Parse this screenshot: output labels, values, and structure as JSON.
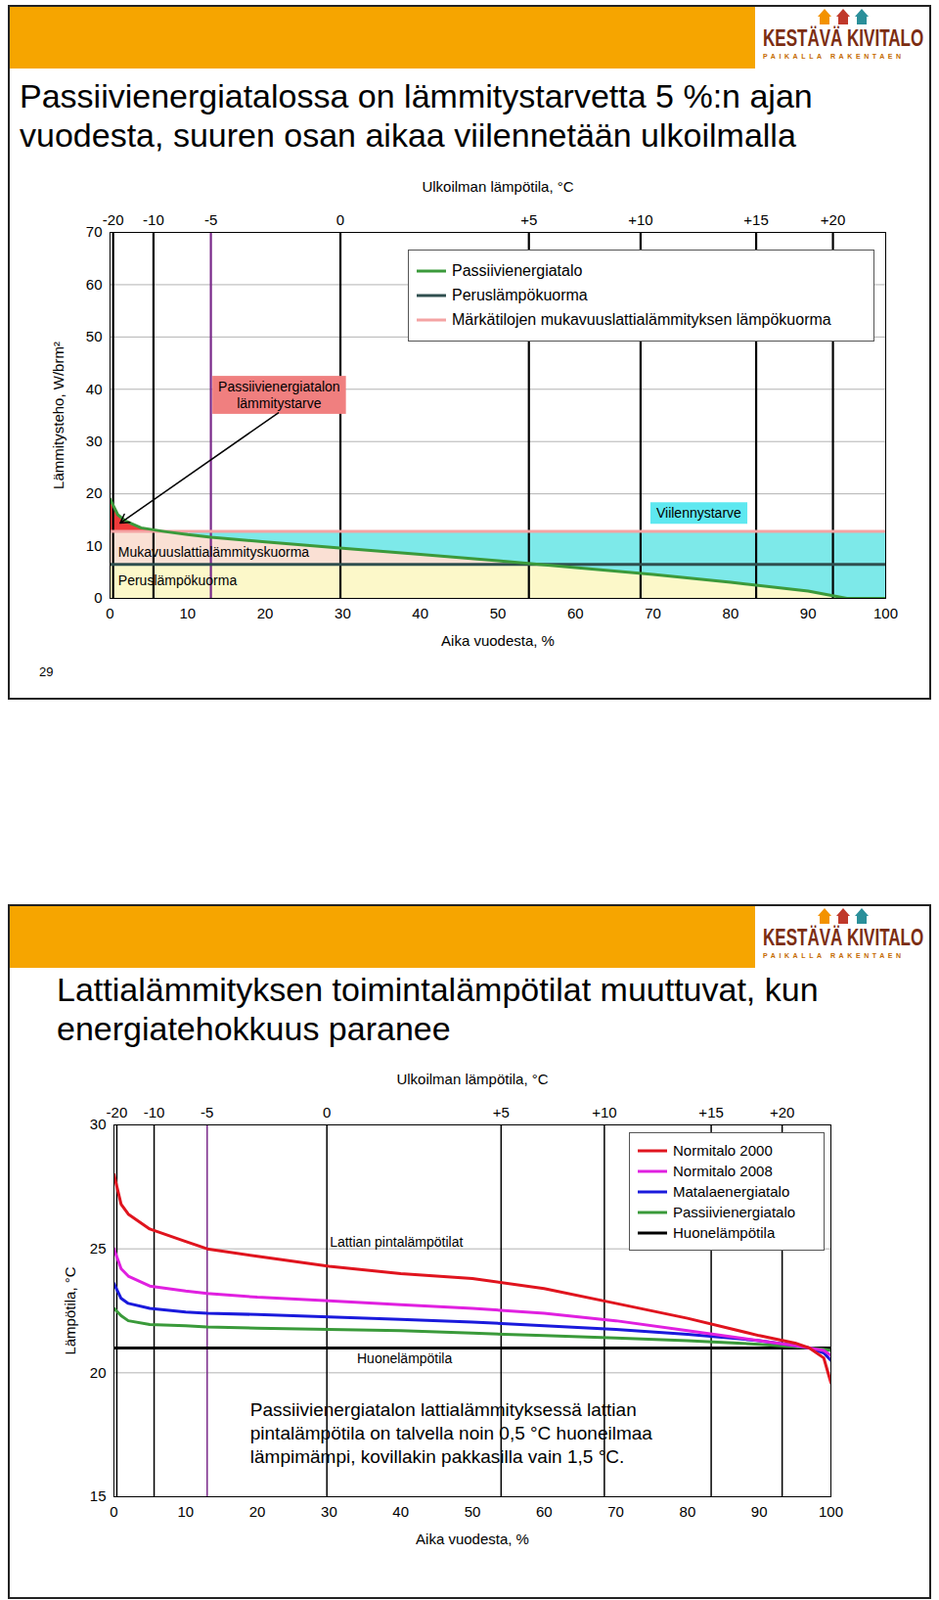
{
  "logo": {
    "name": "KESTÄVÄ KIVITALO",
    "tagline": "PAIKALLA RAKENTAEN"
  },
  "chart_data": [
    {
      "type": "area",
      "title": "Passiivienergiatalossa on lämmitystarvetta 5 %:n ajan vuodesta, suuren osan aikaa viilennetään ulkoilmalla",
      "page_number": "29",
      "xlabel": "Aika vuodesta, %",
      "ylabel": "Lämmitysteho, W/brm²",
      "x2label": "Ulkoilman lämpötila, °C",
      "xlim": [
        0,
        100
      ],
      "xticks": [
        0,
        10,
        20,
        30,
        40,
        50,
        60,
        70,
        80,
        90,
        100
      ],
      "ylim": [
        0,
        70
      ],
      "yticks": [
        0,
        10,
        20,
        30,
        40,
        50,
        60,
        70
      ],
      "x2ticks": [
        {
          "value": 0.4,
          "label": "-20"
        },
        {
          "value": 5.6,
          "label": "-10"
        },
        {
          "value": 13,
          "label": "-5"
        },
        {
          "value": 29.7,
          "label": "0"
        },
        {
          "value": 54,
          "label": "+5"
        },
        {
          "value": 68.4,
          "label": "+10"
        },
        {
          "value": 83.3,
          "label": "+15"
        },
        {
          "value": 93.2,
          "label": "+20"
        }
      ],
      "grid": true,
      "legend": "upper right",
      "x": [
        0,
        1,
        2,
        4,
        7,
        10,
        13,
        20,
        30,
        40,
        50,
        60,
        70,
        80,
        90,
        95,
        100
      ],
      "series": [
        {
          "name": "Passiivienergiatalo",
          "color": "#3b9a3b",
          "values": [
            19,
            16,
            14.8,
            13.5,
            12.8,
            12.2,
            11.7,
            10.8,
            9.6,
            8.4,
            7.2,
            5.9,
            4.6,
            3.1,
            1.4,
            0,
            0
          ]
        },
        {
          "name": "Peruslämpökuorma",
          "color": "#2f4f4f",
          "values": [
            6.5,
            6.5,
            6.5,
            6.5,
            6.5,
            6.5,
            6.5,
            6.5,
            6.5,
            6.5,
            6.5,
            6.5,
            6.5,
            6.5,
            6.5,
            6.5,
            6.5
          ]
        },
        {
          "name": "Märkätilojen mukavuuslattialämmityksen lämpökuorma",
          "color": "#f4a3a3",
          "values": [
            12.8,
            12.8,
            12.8,
            12.8,
            12.8,
            12.8,
            12.8,
            12.8,
            12.8,
            12.8,
            12.8,
            12.8,
            12.8,
            12.8,
            12.8,
            12.8,
            12.8
          ]
        }
      ],
      "annotations": [
        {
          "text": [
            "Passiivienergiatalon",
            "lämmitystarve"
          ],
          "x": 21.8,
          "y": 39,
          "color": "#f07f7f",
          "arrow": {
            "from": [
              21.7,
              35.5
            ],
            "to": [
              1.3,
              14.4
            ]
          }
        },
        {
          "text": "Viilennystarve",
          "x": 75.9,
          "y": 16.4,
          "color": "#5ee8f0"
        },
        {
          "text": "Mukavuuslattialämmityskuorma",
          "x": 1.05,
          "y": 9
        },
        {
          "text": "Peruslämpökuorma",
          "x": 1.05,
          "y": 3.5
        }
      ]
    },
    {
      "type": "line",
      "title": "Lattialämmityksen toimintalämpötilat muuttuvat, kun energiatehokkuus paranee",
      "xlabel": "Aika vuodesta, %",
      "ylabel": "Lämpötila, °C",
      "x2label": "Ulkoilman lämpötila, °C",
      "xlim": [
        0,
        100
      ],
      "xticks": [
        0,
        10,
        20,
        30,
        40,
        50,
        60,
        70,
        80,
        90,
        100
      ],
      "ylim": [
        15,
        30
      ],
      "yticks": [
        15,
        20,
        25,
        30
      ],
      "x2ticks": [
        {
          "value": 0.4,
          "label": "-20"
        },
        {
          "value": 5.6,
          "label": "-10"
        },
        {
          "value": 13,
          "label": "-5"
        },
        {
          "value": 29.7,
          "label": "0"
        },
        {
          "value": 54,
          "label": "+5"
        },
        {
          "value": 68.4,
          "label": "+10"
        },
        {
          "value": 83.3,
          "label": "+15"
        },
        {
          "value": 93.2,
          "label": "+20"
        }
      ],
      "grid": true,
      "legend": "upper right",
      "x": [
        0,
        1,
        2,
        5,
        10,
        13,
        20,
        30,
        40,
        50,
        60,
        70,
        80,
        90,
        95,
        97,
        99,
        100
      ],
      "series": [
        {
          "name": "Normitalo 2000",
          "color": "#e0141e",
          "values": [
            28,
            26.8,
            26.4,
            25.8,
            25.3,
            25.0,
            24.7,
            24.3,
            24.0,
            23.8,
            23.4,
            22.8,
            22.2,
            21.5,
            21.2,
            21.0,
            20.6,
            19.6
          ]
        },
        {
          "name": "Normitalo 2008",
          "color": "#e020e0",
          "values": [
            25,
            24.2,
            23.9,
            23.5,
            23.3,
            23.2,
            23.05,
            22.9,
            22.75,
            22.6,
            22.4,
            22.1,
            21.7,
            21.3,
            21.1,
            21.0,
            20.9,
            20.7
          ]
        },
        {
          "name": "Matalaenergiatalo",
          "color": "#1a1adc",
          "values": [
            23.6,
            23.0,
            22.8,
            22.6,
            22.45,
            22.4,
            22.35,
            22.25,
            22.15,
            22.05,
            21.9,
            21.75,
            21.55,
            21.3,
            21.1,
            21.0,
            20.8,
            20.5
          ]
        },
        {
          "name": "Passiivienergiatalo",
          "color": "#3a9a3a",
          "values": [
            22.6,
            22.3,
            22.1,
            21.95,
            21.9,
            21.85,
            21.8,
            21.75,
            21.7,
            21.6,
            21.5,
            21.4,
            21.3,
            21.15,
            21.05,
            21.0,
            20.95,
            20.9
          ]
        },
        {
          "name": "Huonelämpötila",
          "color": "#000000",
          "values": [
            21,
            21,
            21,
            21,
            21,
            21,
            21,
            21,
            21,
            21,
            21,
            21,
            21,
            21,
            21,
            21,
            21,
            21
          ]
        }
      ],
      "annotations": [
        {
          "text": "Lattian pintalämpötilat",
          "x": 30.1,
          "y": 25.3
        },
        {
          "text": "Huonelämpötila",
          "x": 33.9,
          "y": 20.6
        },
        {
          "text": [
            "Passiivienergiatalon lattialämmityksessä lattian",
            "pintalämpötila on talvella noin 0,5 °C huoneilmaa",
            "lämpimämpi, kovillakin pakkasilla vain 1,5 °C."
          ],
          "x": 19.0,
          "y": 17.6
        }
      ]
    }
  ]
}
